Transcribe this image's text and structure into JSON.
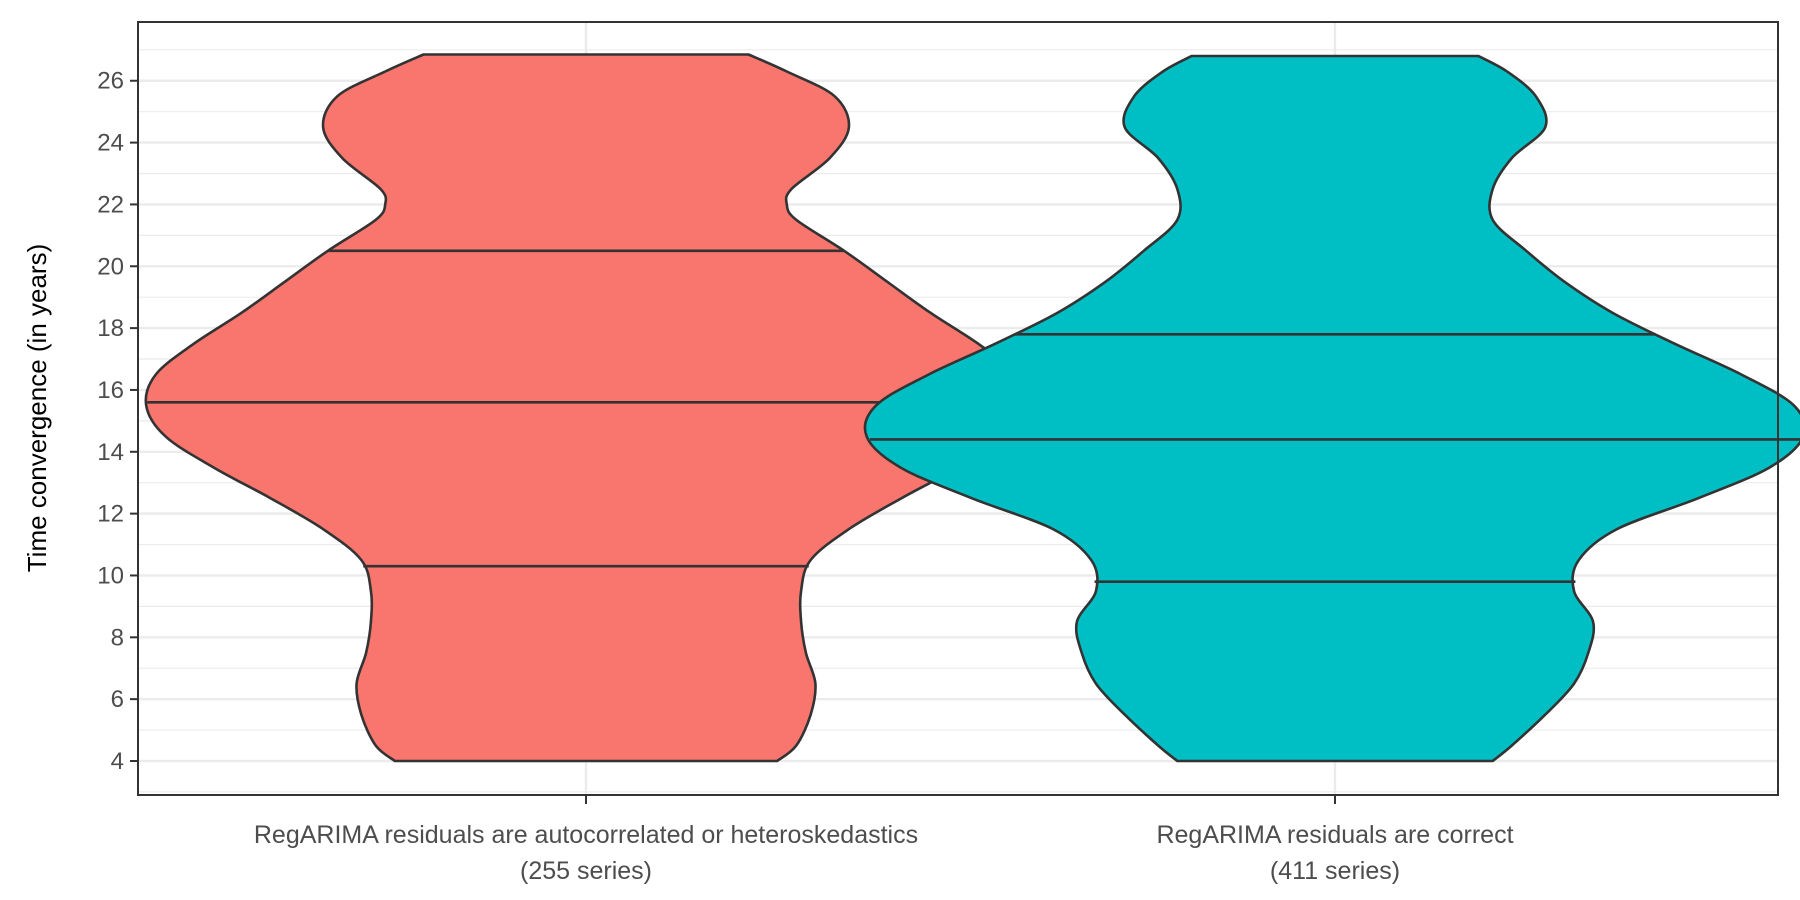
{
  "chart_data": {
    "type": "violin",
    "title": "",
    "xlabel": "",
    "ylabel": "Time convergence (in years)",
    "ylim": [
      2.9,
      27.9
    ],
    "yticks": [
      4,
      6,
      8,
      10,
      12,
      14,
      16,
      18,
      20,
      22,
      24,
      26
    ],
    "grid": true,
    "legend": "none",
    "categories": [
      {
        "line1": "RegARIMA residuals are autocorrelated or heteroskedastics",
        "line2": "(255 series)"
      },
      {
        "line1": "RegARIMA residuals are correct",
        "line2": "(411 series)"
      }
    ],
    "series": [
      {
        "color": "#F8766D",
        "ymin": 4.0,
        "ymax": 26.85,
        "quantiles": [
          10.3,
          15.6,
          20.5
        ],
        "density": [
          [
            4.0,
            0.4
          ],
          [
            4.5,
            0.44
          ],
          [
            5.5,
            0.47
          ],
          [
            6.5,
            0.48
          ],
          [
            7.5,
            0.46
          ],
          [
            8.5,
            0.45
          ],
          [
            9.5,
            0.45
          ],
          [
            10.5,
            0.47
          ],
          [
            11.5,
            0.55
          ],
          [
            12.5,
            0.66
          ],
          [
            13.5,
            0.78
          ],
          [
            14.5,
            0.88
          ],
          [
            15.5,
            0.92
          ],
          [
            16.5,
            0.9
          ],
          [
            17.5,
            0.82
          ],
          [
            18.5,
            0.72
          ],
          [
            19.5,
            0.63
          ],
          [
            20.5,
            0.54
          ],
          [
            21.5,
            0.44
          ],
          [
            22.0,
            0.42
          ],
          [
            22.5,
            0.43
          ],
          [
            23.5,
            0.51
          ],
          [
            24.5,
            0.55
          ],
          [
            25.5,
            0.52
          ],
          [
            26.3,
            0.42
          ],
          [
            26.85,
            0.34
          ]
        ]
      },
      {
        "color": "#00BFC4",
        "ymin": 4.0,
        "ymax": 26.8,
        "quantiles": [
          9.8,
          14.4,
          17.8
        ],
        "density": [
          [
            4.0,
            0.33
          ],
          [
            4.5,
            0.37
          ],
          [
            5.5,
            0.44
          ],
          [
            6.5,
            0.5
          ],
          [
            7.5,
            0.53
          ],
          [
            8.5,
            0.54
          ],
          [
            9.5,
            0.5
          ],
          [
            10.5,
            0.51
          ],
          [
            11.5,
            0.59
          ],
          [
            12.5,
            0.76
          ],
          [
            13.5,
            0.91
          ],
          [
            14.5,
            0.98
          ],
          [
            15.5,
            0.96
          ],
          [
            16.5,
            0.85
          ],
          [
            17.5,
            0.71
          ],
          [
            18.5,
            0.58
          ],
          [
            19.5,
            0.48
          ],
          [
            20.5,
            0.4
          ],
          [
            21.5,
            0.33
          ],
          [
            22.5,
            0.33
          ],
          [
            23.5,
            0.37
          ],
          [
            24.5,
            0.44
          ],
          [
            25.5,
            0.42
          ],
          [
            26.3,
            0.36
          ],
          [
            26.8,
            0.3
          ]
        ]
      }
    ]
  }
}
